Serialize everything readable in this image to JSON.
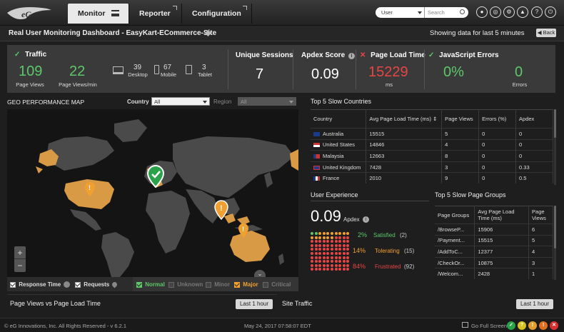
{
  "nav": {
    "tabs": [
      {
        "label": "Monitor"
      },
      {
        "label": "Reporter"
      },
      {
        "label": "Configuration"
      }
    ],
    "user_select": "User",
    "search_placeholder": "Search"
  },
  "header": {
    "title": "Real User Monitoring Dashboard - EasyKart-ECommerce-Site",
    "showing": "Showing data for last 5 minutes",
    "back_label": "Back"
  },
  "summary": {
    "traffic": {
      "title": "Traffic",
      "page_views": "109",
      "page_views_label": "Page Views",
      "page_views_min": "22",
      "page_views_min_label": "Page Views/min",
      "desktop": "39",
      "desktop_label": "Desktop",
      "mobile": "67",
      "mobile_label": "Mobile",
      "tablet": "3",
      "tablet_label": "Tablet"
    },
    "sessions": {
      "title": "Unique Sessions",
      "value": "7"
    },
    "apdex": {
      "title": "Apdex Score",
      "value": "0.09"
    },
    "load_time": {
      "title": "Page Load Time",
      "value": "15229",
      "unit": "ms"
    },
    "js_errors": {
      "title": "JavaScript Errors",
      "percent": "0%",
      "count": "0",
      "count_label": "Errors"
    }
  },
  "geo": {
    "title": "GEO PERFORMANCE MAP",
    "country_label": "Country",
    "country_value": "All",
    "region_label": "Region",
    "region_value": "All",
    "zoom_in": "+",
    "zoom_out": "−",
    "footer": {
      "response_time": "Response Time",
      "requests": "Requests",
      "normal": "Normal",
      "unknown": "Unknown",
      "minor": "Minor",
      "major": "Major",
      "critical": "Critical"
    }
  },
  "countries": {
    "title": "Top 5 Slow Countries",
    "columns": [
      "Country",
      "Avg Page Load Time (ms)",
      "Page Views",
      "Errors (%)",
      "Apdex"
    ],
    "rows": [
      {
        "country": "Australia",
        "avg": "15515",
        "views": "5",
        "errors": "0",
        "apdex": "0"
      },
      {
        "country": "United States",
        "avg": "14846",
        "views": "4",
        "errors": "0",
        "apdex": "0"
      },
      {
        "country": "Malaysia",
        "avg": "12663",
        "views": "8",
        "errors": "0",
        "apdex": "0"
      },
      {
        "country": "United Kingdom",
        "avg": "7428",
        "views": "3",
        "errors": "0",
        "apdex": "0.33"
      },
      {
        "country": "France",
        "avg": "2010",
        "views": "9",
        "errors": "0",
        "apdex": "0.5"
      }
    ]
  },
  "experience": {
    "title": "User Experience",
    "apdex_value": "0.09",
    "apdex_label": "Apdex",
    "satisfied_pct": "2%",
    "satisfied_label": "Satisfied",
    "satisfied_count": "(2)",
    "tolerating_pct": "14%",
    "tolerating_label": "Tolerating",
    "tolerating_count": "(15)",
    "frustrated_pct": "84%",
    "frustrated_label": "Frustrated",
    "frustrated_count": "(92)"
  },
  "pagegroups": {
    "title": "Top 5 Slow Page Groups",
    "columns": [
      "Page Groups",
      "Avg Page Load Time (ms)",
      "Page Views"
    ],
    "rows": [
      {
        "group": "/BrowseP...",
        "avg": "15906",
        "views": "6"
      },
      {
        "group": "/Payment...",
        "avg": "15515",
        "views": "5"
      },
      {
        "group": "/AddToC...",
        "avg": "12377",
        "views": "4"
      },
      {
        "group": "/CheckOr...",
        "avg": "10875",
        "views": "3"
      },
      {
        "group": "/Welcom...",
        "avg": "2428",
        "views": "1"
      }
    ]
  },
  "bottom": {
    "pv_title": "Page Views vs Page Load Time",
    "pv_button": "Last 1 hour",
    "traffic_title": "Site Traffic",
    "traffic_button": "Last 1 hour"
  },
  "status": {
    "copyright": "© eG Innovations, Inc. All Rights Reserved - v 6.2.1",
    "datetime": "May 24, 2017 07:58:07 EDT",
    "fullscreen": "Go Full Screen"
  },
  "colors": {
    "green": "#5cc86a",
    "red": "#e84545",
    "orange": "#f0a030",
    "map_highlight": "#d99a45"
  }
}
